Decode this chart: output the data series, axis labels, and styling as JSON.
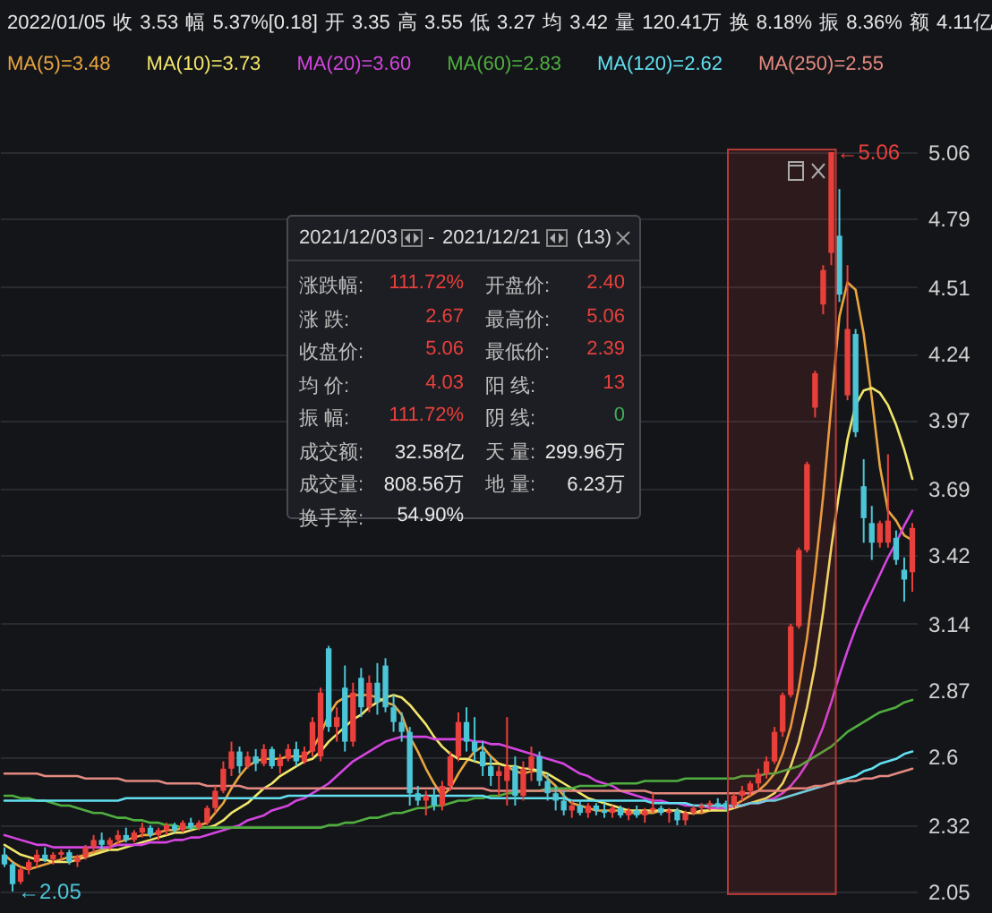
{
  "chart_data": {
    "type": "candlestick",
    "title": "2022/01/05 收 3.53 幅 5.37%[0.18] 开 3.35 高 3.55 低 3.27 均 3.42 量 120.41万 换 8.18% 振 8.36% 额 4.11亿",
    "categories": [
      null,
      null,
      null,
      null,
      null,
      null,
      null,
      null,
      null,
      null,
      null,
      null,
      null,
      null,
      null,
      null,
      null,
      null,
      null,
      null,
      null,
      null,
      null,
      null,
      null,
      null,
      null,
      null,
      null,
      null,
      null,
      null,
      null,
      null,
      null,
      null,
      null,
      null,
      null,
      null,
      null,
      null,
      null,
      null,
      null,
      null,
      null,
      null,
      null,
      null,
      null,
      null,
      null,
      null,
      null,
      null,
      null,
      null,
      null,
      null,
      null,
      null,
      null,
      null,
      null,
      null,
      null,
      null,
      null,
      null,
      null,
      null,
      null,
      null,
      null,
      null,
      null,
      null,
      null,
      null,
      null,
      null,
      null,
      null,
      null,
      null,
      null,
      null,
      null,
      null,
      null,
      null,
      null,
      null,
      null,
      null,
      null,
      null,
      null,
      null,
      null,
      null,
      null,
      null,
      null,
      null,
      null,
      null,
      null,
      null,
      null,
      null,
      null
    ],
    "ohlc": [
      [
        2.2,
        2.23,
        2.15,
        2.16
      ],
      [
        2.16,
        2.17,
        2.05,
        2.08
      ],
      [
        2.09,
        2.15,
        2.08,
        2.14
      ],
      [
        2.14,
        2.18,
        2.12,
        2.17
      ],
      [
        2.17,
        2.22,
        2.15,
        2.2
      ],
      [
        2.2,
        2.23,
        2.17,
        2.18
      ],
      [
        2.18,
        2.21,
        2.16,
        2.2
      ],
      [
        2.2,
        2.22,
        2.18,
        2.21
      ],
      [
        2.21,
        2.22,
        2.16,
        2.17
      ],
      [
        2.17,
        2.2,
        2.15,
        2.19
      ],
      [
        2.19,
        2.24,
        2.18,
        2.23
      ],
      [
        2.23,
        2.28,
        2.21,
        2.26
      ],
      [
        2.26,
        2.29,
        2.22,
        2.24
      ],
      [
        2.24,
        2.27,
        2.22,
        2.26
      ],
      [
        2.26,
        2.3,
        2.24,
        2.28
      ],
      [
        2.28,
        2.31,
        2.25,
        2.26
      ],
      [
        2.26,
        2.3,
        2.25,
        2.29
      ],
      [
        2.29,
        2.33,
        2.27,
        2.31
      ],
      [
        2.31,
        2.32,
        2.27,
        2.28
      ],
      [
        2.28,
        2.31,
        2.26,
        2.3
      ],
      [
        2.3,
        2.33,
        2.28,
        2.32
      ],
      [
        2.32,
        2.33,
        2.29,
        2.3
      ],
      [
        2.3,
        2.34,
        2.29,
        2.33
      ],
      [
        2.33,
        2.35,
        2.3,
        2.31
      ],
      [
        2.31,
        2.34,
        2.3,
        2.33
      ],
      [
        2.33,
        2.4,
        2.32,
        2.39
      ],
      [
        2.39,
        2.48,
        2.37,
        2.46
      ],
      [
        2.46,
        2.58,
        2.45,
        2.55
      ],
      [
        2.55,
        2.66,
        2.52,
        2.62
      ],
      [
        2.62,
        2.64,
        2.53,
        2.56
      ],
      [
        2.56,
        2.62,
        2.55,
        2.6
      ],
      [
        2.6,
        2.63,
        2.54,
        2.57
      ],
      [
        2.57,
        2.65,
        2.56,
        2.63
      ],
      [
        2.63,
        2.64,
        2.55,
        2.56
      ],
      [
        2.56,
        2.61,
        2.53,
        2.59
      ],
      [
        2.59,
        2.65,
        2.58,
        2.63
      ],
      [
        2.63,
        2.66,
        2.56,
        2.58
      ],
      [
        2.58,
        2.64,
        2.57,
        2.62
      ],
      [
        2.62,
        2.76,
        2.6,
        2.74
      ],
      [
        2.6,
        2.88,
        2.58,
        2.86
      ],
      [
        3.04,
        3.05,
        2.7,
        2.72
      ],
      [
        2.72,
        2.8,
        2.66,
        2.76
      ],
      [
        2.88,
        2.97,
        2.62,
        2.66
      ],
      [
        2.66,
        2.9,
        2.64,
        2.86
      ],
      [
        2.92,
        2.96,
        2.76,
        2.8
      ],
      [
        2.8,
        2.93,
        2.78,
        2.9
      ],
      [
        2.9,
        2.98,
        2.77,
        2.82
      ],
      [
        2.97,
        3.0,
        2.78,
        2.8
      ],
      [
        2.8,
        2.85,
        2.7,
        2.74
      ],
      [
        2.74,
        2.78,
        2.66,
        2.7
      ],
      [
        2.7,
        2.72,
        2.4,
        2.45
      ],
      [
        2.45,
        2.48,
        2.4,
        2.42
      ],
      [
        2.42,
        2.46,
        2.36,
        2.44
      ],
      [
        2.44,
        2.47,
        2.38,
        2.4
      ],
      [
        2.4,
        2.5,
        2.38,
        2.48
      ],
      [
        2.48,
        2.62,
        2.46,
        2.6
      ],
      [
        2.6,
        2.78,
        2.58,
        2.74
      ],
      [
        2.74,
        2.8,
        2.62,
        2.66
      ],
      [
        2.66,
        2.76,
        2.58,
        2.62
      ],
      [
        2.62,
        2.66,
        2.52,
        2.56
      ],
      [
        2.56,
        2.6,
        2.48,
        2.52
      ],
      [
        2.52,
        2.56,
        2.44,
        2.54
      ],
      [
        2.5,
        2.76,
        2.4,
        2.56
      ],
      [
        2.56,
        2.6,
        2.4,
        2.44
      ],
      [
        2.44,
        2.58,
        2.42,
        2.55
      ],
      [
        2.55,
        2.64,
        2.5,
        2.6
      ],
      [
        2.6,
        2.62,
        2.48,
        2.5
      ],
      [
        2.5,
        2.53,
        2.42,
        2.45
      ],
      [
        2.45,
        2.48,
        2.38,
        2.42
      ],
      [
        2.42,
        2.46,
        2.36,
        2.38
      ],
      [
        2.38,
        2.42,
        2.35,
        2.4
      ],
      [
        2.4,
        2.42,
        2.36,
        2.37
      ],
      [
        2.37,
        2.41,
        2.35,
        2.4
      ],
      [
        2.4,
        2.41,
        2.36,
        2.38
      ],
      [
        2.38,
        2.41,
        2.35,
        2.37
      ],
      [
        2.37,
        2.4,
        2.35,
        2.39
      ],
      [
        2.39,
        2.4,
        2.35,
        2.36
      ],
      [
        2.36,
        2.39,
        2.34,
        2.38
      ],
      [
        2.38,
        2.4,
        2.35,
        2.36
      ],
      [
        2.36,
        2.39,
        2.33,
        2.38
      ],
      [
        2.38,
        2.45,
        2.37,
        2.39
      ],
      [
        2.39,
        2.4,
        2.36,
        2.37
      ],
      [
        2.37,
        2.39,
        2.33,
        2.38
      ],
      [
        2.38,
        2.39,
        2.32,
        2.34
      ],
      [
        2.34,
        2.38,
        2.32,
        2.37
      ],
      [
        2.37,
        2.4,
        2.36,
        2.39
      ],
      [
        2.39,
        2.41,
        2.37,
        2.4
      ],
      [
        2.4,
        2.42,
        2.38,
        2.41
      ],
      [
        2.41,
        2.43,
        2.39,
        2.4
      ],
      [
        2.41,
        2.42,
        2.38,
        2.39
      ],
      [
        2.4,
        2.45,
        2.39,
        2.44
      ],
      [
        2.44,
        2.48,
        2.42,
        2.46
      ],
      [
        2.46,
        2.5,
        2.44,
        2.49
      ],
      [
        2.49,
        2.55,
        2.47,
        2.53
      ],
      [
        2.53,
        2.6,
        2.51,
        2.58
      ],
      [
        2.58,
        2.72,
        2.57,
        2.7
      ],
      [
        2.7,
        2.86,
        2.68,
        2.85
      ],
      [
        2.85,
        3.14,
        2.84,
        3.13
      ],
      [
        3.13,
        3.45,
        3.12,
        3.44
      ],
      [
        3.44,
        3.8,
        3.43,
        3.79
      ],
      [
        4.02,
        4.17,
        3.98,
        4.16
      ],
      [
        4.44,
        4.6,
        4.4,
        4.58
      ],
      [
        4.65,
        5.06,
        4.6,
        5.06
      ],
      [
        4.72,
        4.91,
        4.45,
        4.48
      ],
      [
        4.07,
        4.6,
        4.05,
        4.34
      ],
      [
        4.32,
        4.34,
        3.9,
        3.92
      ],
      [
        3.7,
        3.81,
        3.47,
        3.57
      ],
      [
        3.55,
        3.62,
        3.4,
        3.47
      ],
      [
        3.47,
        3.56,
        3.45,
        3.55
      ],
      [
        3.47,
        3.83,
        3.45,
        3.56
      ],
      [
        3.49,
        3.52,
        3.38,
        3.4
      ],
      [
        3.36,
        3.41,
        3.23,
        3.32
      ],
      [
        3.35,
        3.55,
        3.27,
        3.53
      ]
    ],
    "colors": [
      "#4cc6d6",
      "#4cc6d6",
      "#e8403c",
      "#e8403c",
      "#e8403c",
      "#4cc6d6",
      "#e8403c",
      "#e8403c",
      "#4cc6d6",
      "#e8403c",
      "#e8403c",
      "#e8403c",
      "#4cc6d6",
      "#e8403c",
      "#e8403c",
      "#4cc6d6",
      "#e8403c",
      "#e8403c",
      "#4cc6d6",
      "#e8403c",
      "#e8403c",
      "#4cc6d6",
      "#e8403c",
      "#4cc6d6",
      "#e8403c",
      "#e8403c",
      "#e8403c",
      "#e8403c",
      "#e8403c",
      "#4cc6d6",
      "#e8403c",
      "#4cc6d6",
      "#e8403c",
      "#4cc6d6",
      "#e8403c",
      "#e8403c",
      "#4cc6d6",
      "#e8403c",
      "#e8403c",
      "#e8403c",
      "#4cc6d6",
      "#e8403c",
      "#4cc6d6",
      "#e8403c",
      "#4cc6d6",
      "#e8403c",
      "#4cc6d6",
      "#4cc6d6",
      "#4cc6d6",
      "#4cc6d6",
      "#4cc6d6",
      "#4cc6d6",
      "#e8403c",
      "#4cc6d6",
      "#e8403c",
      "#e8403c",
      "#e8403c",
      "#4cc6d6",
      "#4cc6d6",
      "#4cc6d6",
      "#4cc6d6",
      "#e8403c",
      "#e8403c",
      "#4cc6d6",
      "#e8403c",
      "#e8403c",
      "#4cc6d6",
      "#4cc6d6",
      "#4cc6d6",
      "#4cc6d6",
      "#e8403c",
      "#4cc6d6",
      "#e8403c",
      "#4cc6d6",
      "#4cc6d6",
      "#e8403c",
      "#4cc6d6",
      "#e8403c",
      "#4cc6d6",
      "#e8403c",
      "#e8403c",
      "#4cc6d6",
      "#e8403c",
      "#4cc6d6",
      "#e8403c",
      "#e8403c",
      "#e8403c",
      "#e8403c",
      "#4cc6d6",
      "#4cc6d6",
      "#e8403c",
      "#e8403c",
      "#e8403c",
      "#e8403c",
      "#e8403c",
      "#e8403c",
      "#e8403c",
      "#e8403c",
      "#e8403c",
      "#e8403c",
      "#e8403c",
      "#e8403c",
      "#e8403c",
      "#4cc6d6",
      "#e8403c",
      "#4cc6d6",
      "#4cc6d6",
      "#4cc6d6",
      "#e8403c",
      "#e8403c",
      "#4cc6d6",
      "#4cc6d6",
      "#e8403c"
    ],
    "series": [
      {
        "name": "MA(5)=3.48",
        "type": "line",
        "color": "#e9a640",
        "values": [
          2.2,
          2.17,
          2.15,
          2.14,
          2.15,
          2.16,
          2.17,
          2.18,
          2.19,
          2.19,
          2.2,
          2.21,
          2.22,
          2.23,
          2.25,
          2.26,
          2.27,
          2.28,
          2.28,
          2.29,
          2.3,
          2.3,
          2.31,
          2.31,
          2.32,
          2.33,
          2.37,
          2.41,
          2.47,
          2.52,
          2.56,
          2.58,
          2.59,
          2.59,
          2.59,
          2.6,
          2.6,
          2.6,
          2.63,
          2.69,
          2.77,
          2.82,
          2.84,
          2.85,
          2.85,
          2.85,
          2.84,
          2.82,
          2.81,
          2.77,
          2.68,
          2.62,
          2.55,
          2.49,
          2.44,
          2.47,
          2.53,
          2.58,
          2.62,
          2.64,
          2.6,
          2.57,
          2.56,
          2.54,
          2.53,
          2.54,
          2.54,
          2.51,
          2.48,
          2.44,
          2.41,
          2.4,
          2.39,
          2.38,
          2.38,
          2.38,
          2.38,
          2.37,
          2.37,
          2.37,
          2.37,
          2.38,
          2.38,
          2.38,
          2.37,
          2.37,
          2.37,
          2.38,
          2.39,
          2.39,
          2.4,
          2.42,
          2.44,
          2.46,
          2.49,
          2.53,
          2.61,
          2.72,
          2.88,
          3.08,
          3.35,
          3.66,
          4.03,
          4.39,
          4.53,
          4.5,
          4.32,
          4.06,
          3.78,
          3.6,
          3.56,
          3.5,
          3.48
        ]
      },
      {
        "name": "MA(10)=3.73",
        "type": "line",
        "color": "#f2e66a",
        "values": [
          2.24,
          2.22,
          2.2,
          2.19,
          2.18,
          2.18,
          2.17,
          2.17,
          2.17,
          2.18,
          2.19,
          2.2,
          2.21,
          2.22,
          2.22,
          2.23,
          2.24,
          2.25,
          2.26,
          2.27,
          2.28,
          2.29,
          2.29,
          2.3,
          2.31,
          2.31,
          2.32,
          2.34,
          2.37,
          2.39,
          2.41,
          2.44,
          2.47,
          2.49,
          2.52,
          2.54,
          2.56,
          2.58,
          2.59,
          2.62,
          2.66,
          2.69,
          2.72,
          2.75,
          2.77,
          2.8,
          2.82,
          2.84,
          2.85,
          2.84,
          2.81,
          2.77,
          2.73,
          2.68,
          2.64,
          2.61,
          2.59,
          2.59,
          2.58,
          2.57,
          2.57,
          2.57,
          2.56,
          2.56,
          2.55,
          2.55,
          2.54,
          2.53,
          2.51,
          2.49,
          2.47,
          2.45,
          2.43,
          2.42,
          2.41,
          2.4,
          2.39,
          2.38,
          2.38,
          2.38,
          2.38,
          2.38,
          2.38,
          2.38,
          2.37,
          2.37,
          2.38,
          2.38,
          2.38,
          2.38,
          2.39,
          2.4,
          2.41,
          2.42,
          2.43,
          2.45,
          2.49,
          2.56,
          2.66,
          2.8,
          2.97,
          3.19,
          3.45,
          3.68,
          3.89,
          4.03,
          4.09,
          4.1,
          4.08,
          4.03,
          3.95,
          3.85,
          3.73
        ]
      },
      {
        "name": "MA(20)=3.60",
        "type": "line",
        "color": "#d445e0",
        "values": [
          2.28,
          2.27,
          2.26,
          2.25,
          2.24,
          2.24,
          2.23,
          2.23,
          2.23,
          2.23,
          2.23,
          2.23,
          2.23,
          2.23,
          2.24,
          2.24,
          2.24,
          2.24,
          2.25,
          2.25,
          2.25,
          2.26,
          2.26,
          2.27,
          2.27,
          2.28,
          2.29,
          2.3,
          2.31,
          2.32,
          2.34,
          2.35,
          2.36,
          2.38,
          2.39,
          2.4,
          2.42,
          2.43,
          2.45,
          2.47,
          2.49,
          2.52,
          2.55,
          2.58,
          2.6,
          2.62,
          2.64,
          2.66,
          2.67,
          2.68,
          2.68,
          2.68,
          2.68,
          2.67,
          2.67,
          2.67,
          2.67,
          2.67,
          2.66,
          2.66,
          2.65,
          2.65,
          2.64,
          2.63,
          2.62,
          2.61,
          2.6,
          2.59,
          2.58,
          2.57,
          2.55,
          2.53,
          2.52,
          2.5,
          2.49,
          2.48,
          2.46,
          2.45,
          2.44,
          2.43,
          2.42,
          2.42,
          2.41,
          2.41,
          2.4,
          2.4,
          2.4,
          2.39,
          2.39,
          2.39,
          2.4,
          2.4,
          2.41,
          2.41,
          2.42,
          2.43,
          2.45,
          2.48,
          2.52,
          2.57,
          2.64,
          2.72,
          2.82,
          2.93,
          3.03,
          3.12,
          3.2,
          3.27,
          3.34,
          3.41,
          3.47,
          3.54,
          3.6
        ]
      },
      {
        "name": "MA(60)=2.83",
        "type": "line",
        "color": "#4fae3f",
        "values": [
          2.44,
          2.44,
          2.43,
          2.43,
          2.42,
          2.42,
          2.41,
          2.4,
          2.4,
          2.39,
          2.38,
          2.37,
          2.37,
          2.36,
          2.35,
          2.35,
          2.34,
          2.34,
          2.33,
          2.33,
          2.32,
          2.32,
          2.31,
          2.31,
          2.31,
          2.31,
          2.31,
          2.31,
          2.31,
          2.31,
          2.31,
          2.31,
          2.31,
          2.31,
          2.31,
          2.31,
          2.31,
          2.31,
          2.31,
          2.31,
          2.32,
          2.32,
          2.33,
          2.33,
          2.34,
          2.35,
          2.35,
          2.36,
          2.37,
          2.37,
          2.38,
          2.39,
          2.39,
          2.4,
          2.4,
          2.41,
          2.42,
          2.42,
          2.43,
          2.43,
          2.44,
          2.44,
          2.45,
          2.45,
          2.46,
          2.46,
          2.46,
          2.47,
          2.47,
          2.47,
          2.47,
          2.48,
          2.48,
          2.48,
          2.48,
          2.49,
          2.49,
          2.49,
          2.49,
          2.5,
          2.5,
          2.5,
          2.5,
          2.5,
          2.51,
          2.51,
          2.51,
          2.51,
          2.51,
          2.51,
          2.51,
          2.52,
          2.52,
          2.52,
          2.53,
          2.53,
          2.54,
          2.55,
          2.56,
          2.58,
          2.6,
          2.62,
          2.64,
          2.67,
          2.7,
          2.72,
          2.74,
          2.76,
          2.78,
          2.79,
          2.8,
          2.82,
          2.83
        ]
      },
      {
        "name": "MA(120)=2.62",
        "type": "line",
        "color": "#62dff0",
        "values": [
          2.42,
          2.42,
          2.42,
          2.42,
          2.42,
          2.42,
          2.42,
          2.42,
          2.42,
          2.42,
          2.42,
          2.42,
          2.42,
          2.42,
          2.42,
          2.43,
          2.43,
          2.43,
          2.43,
          2.43,
          2.43,
          2.43,
          2.43,
          2.43,
          2.43,
          2.43,
          2.43,
          2.43,
          2.43,
          2.43,
          2.43,
          2.43,
          2.43,
          2.43,
          2.43,
          2.44,
          2.44,
          2.44,
          2.44,
          2.44,
          2.44,
          2.44,
          2.44,
          2.44,
          2.44,
          2.44,
          2.44,
          2.44,
          2.44,
          2.44,
          2.44,
          2.44,
          2.44,
          2.44,
          2.44,
          2.44,
          2.44,
          2.44,
          2.44,
          2.44,
          2.43,
          2.43,
          2.43,
          2.43,
          2.43,
          2.43,
          2.43,
          2.43,
          2.43,
          2.43,
          2.42,
          2.42,
          2.42,
          2.42,
          2.42,
          2.42,
          2.42,
          2.42,
          2.42,
          2.42,
          2.41,
          2.41,
          2.41,
          2.41,
          2.41,
          2.4,
          2.4,
          2.4,
          2.4,
          2.4,
          2.4,
          2.4,
          2.41,
          2.41,
          2.42,
          2.42,
          2.43,
          2.44,
          2.45,
          2.46,
          2.47,
          2.48,
          2.49,
          2.5,
          2.51,
          2.52,
          2.54,
          2.55,
          2.57,
          2.58,
          2.59,
          2.61,
          2.62
        ]
      },
      {
        "name": "MA(250)=2.55",
        "type": "line",
        "color": "#e38a80",
        "values": [
          2.53,
          2.53,
          2.53,
          2.53,
          2.53,
          2.52,
          2.52,
          2.52,
          2.52,
          2.52,
          2.51,
          2.51,
          2.51,
          2.51,
          2.51,
          2.5,
          2.5,
          2.5,
          2.5,
          2.5,
          2.49,
          2.49,
          2.49,
          2.49,
          2.49,
          2.48,
          2.48,
          2.48,
          2.48,
          2.48,
          2.47,
          2.47,
          2.47,
          2.47,
          2.47,
          2.47,
          2.47,
          2.47,
          2.47,
          2.47,
          2.47,
          2.47,
          2.47,
          2.47,
          2.47,
          2.47,
          2.47,
          2.47,
          2.47,
          2.47,
          2.47,
          2.47,
          2.47,
          2.47,
          2.47,
          2.47,
          2.47,
          2.47,
          2.47,
          2.47,
          2.46,
          2.46,
          2.46,
          2.46,
          2.46,
          2.46,
          2.46,
          2.46,
          2.46,
          2.46,
          2.46,
          2.46,
          2.46,
          2.46,
          2.46,
          2.46,
          2.46,
          2.46,
          2.46,
          2.46,
          2.45,
          2.45,
          2.45,
          2.45,
          2.45,
          2.45,
          2.45,
          2.45,
          2.45,
          2.45,
          2.45,
          2.45,
          2.45,
          2.46,
          2.46,
          2.46,
          2.46,
          2.47,
          2.47,
          2.47,
          2.48,
          2.48,
          2.49,
          2.49,
          2.5,
          2.5,
          2.51,
          2.51,
          2.52,
          2.52,
          2.53,
          2.54,
          2.55
        ]
      }
    ],
    "ylim": [
      2.05,
      5.06
    ],
    "yticks": [
      2.05,
      2.32,
      2.6,
      2.87,
      3.14,
      3.42,
      3.69,
      3.97,
      4.24,
      4.51,
      4.79,
      5.06
    ],
    "grid": "y",
    "legend": "top left",
    "annotations": [
      "2021/12/03",
      "-",
      "2021/12/21",
      "(13)",
      "涨跌幅:",
      "111.72%",
      "开盘价:",
      "2.40",
      "涨 跌:",
      "2.67",
      "最高价:",
      "5.06",
      "收盘价:",
      "5.06",
      "最低价:",
      "2.39",
      "均 价:",
      "4.03",
      "阳 线:",
      "13",
      "振 幅:",
      "111.72%",
      "阴 线:",
      "0",
      "成交额:",
      "32.58亿",
      "天 量:",
      "299.96万",
      "成交量:",
      "808.56万",
      "地 量:",
      "6.23万",
      "换手率:",
      "54.90%",
      "←5.06",
      "←2.05"
    ]
  }
}
